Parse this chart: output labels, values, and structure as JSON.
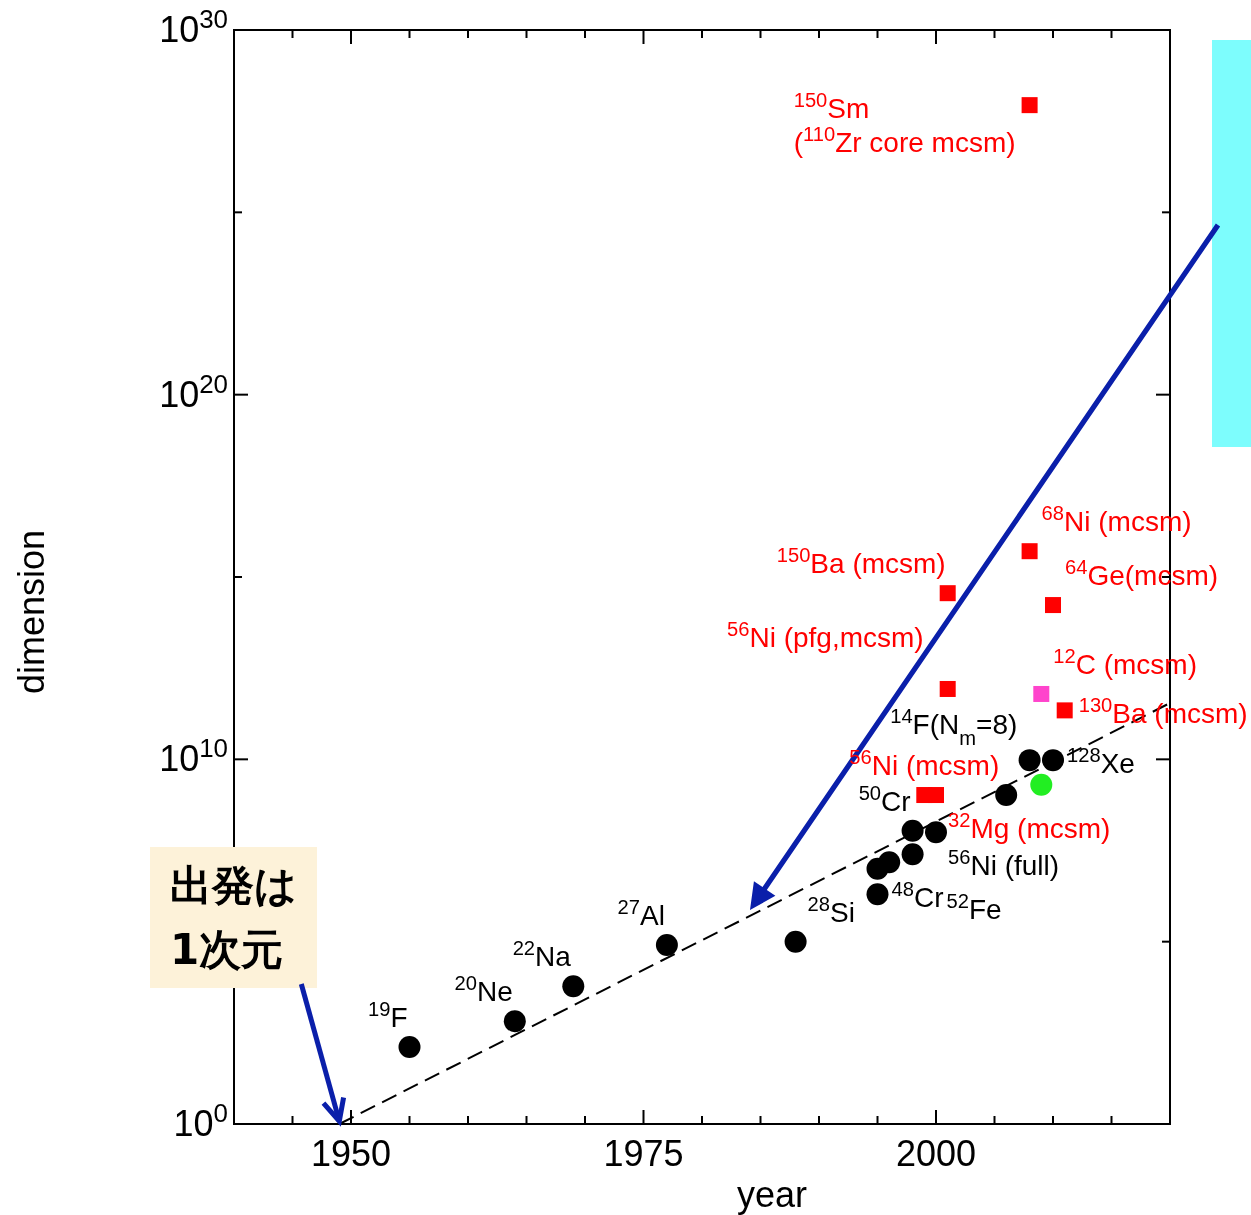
{
  "chart_data": {
    "type": "scatter",
    "xlabel": "year",
    "ylabel": "dimension",
    "log": "y",
    "xlim": [
      1940,
      2020
    ],
    "xticks": [
      {
        "value": 1945,
        "label": null
      },
      1950,
      {
        "value": 1955,
        "label": null
      },
      {
        "value": 1960,
        "label": null
      },
      {
        "value": 1965,
        "label": null
      },
      {
        "value": 1970,
        "label": null
      },
      1975,
      {
        "value": 1980,
        "label": null
      },
      {
        "value": 1985,
        "label": null
      },
      {
        "value": 1990,
        "label": null
      },
      {
        "value": 1995,
        "label": null
      },
      2000,
      {
        "value": 2005,
        "label": null
      },
      {
        "value": 2010,
        "label": null
      },
      {
        "value": 2015,
        "label": null
      }
    ],
    "ylim": [
      1,
      1e+30
    ],
    "yticks": [
      {
        "value": 1,
        "label": "10$^{0}$"
      },
      {
        "value": 100000.0,
        "label": null
      },
      {
        "value": 10000000000.0,
        "label": "10$^{10}$"
      },
      {
        "value": 1000000000000000.0,
        "label": null
      },
      {
        "value": 1e+20,
        "label": "10$^{20}$"
      },
      {
        "value": 1e+25,
        "label": null
      },
      {
        "value": 1e+30,
        "label": "10$^{30}$"
      }
    ],
    "series": [
      {
        "type": "line",
        "color": "#000000",
        "line_style": "dashed",
        "marker": "none",
        "x": [
          1949,
          2020
        ],
        "values": [
          1,
          350000000000.0
        ]
      },
      {
        "color": "#000000",
        "marker": "circle",
        "x": [
          1955,
          1964,
          1969,
          1977,
          1988,
          1995,
          1995,
          1996,
          1998,
          1998,
          2000,
          2006,
          2008,
          2010
        ],
        "values": [
          130,
          660,
          6000,
          81000,
          100000,
          2000000.0,
          10000000.0,
          15000000.0,
          25000000.0,
          110000000.0,
          100000000.0,
          1050000000.0,
          9500000000.0,
          9500000000.0
        ]
      },
      {
        "color": "#ff0000",
        "marker": "square",
        "x": [
          2008,
          2008,
          2001,
          2010,
          2001,
          2011,
          1999,
          2000
        ],
        "values": [
          8.7e+27,
          5100000000000000.0,
          360000000000000.0,
          170000000000000.0,
          850000000000.0,
          220000000000.0,
          1050000000.0,
          1050000000.0
        ]
      },
      {
        "color": "#ff44cc",
        "marker": "square",
        "x": [
          2009
        ],
        "values": [
          620000000000.0
        ]
      },
      {
        "color": "#22ee22",
        "marker": "circle",
        "x": [
          2009
        ],
        "values": [
          2000000000.0
        ]
      }
    ],
    "annotations": [
      {
        "text": "$^{150}$Sm\n($^{110}$Zr core mcsm)",
        "x": 2008,
        "y": 8.7e+27
      },
      {
        "text": "$^{68}$Ni (mcsm)",
        "x": 2008,
        "y": 5100000000000000.0
      },
      {
        "text": "$^{150}$Ba (mcsm)",
        "x": 2001,
        "y": 360000000000000.0
      },
      {
        "text": "$^{64}$Ge(mcsm)",
        "x": 2010,
        "y": 170000000000000.0
      },
      {
        "text": "$^{12}$C (mcsm)",
        "x": 2009,
        "y": 620000000000.0
      },
      {
        "text": "$^{56}$Ni (pfg,mcsm)",
        "x": 2001,
        "y": 850000000000.0
      },
      {
        "text": "$^{130}$Ba (mcsm)",
        "x": 2011,
        "y": 220000000000.0
      },
      {
        "text": "$^{32}$Mg (mcsm)",
        "x": 2000,
        "y": 1050000000.0
      },
      {
        "text": "$^{56}$Ni (mcsm)",
        "x": 1999,
        "y": 1050000000.0
      },
      {
        "text": "$^{128}$Xe",
        "x": 2010,
        "y": 9500000000.0
      },
      {
        "text": "$^{14}$F(N$_{m}$=8)",
        "x": 2009,
        "y": 2000000000.0
      },
      {
        "text": "$^{56}$Ni (full)",
        "x": 2000,
        "y": 100000000.0
      },
      {
        "text": "$^{50}$Cr",
        "x": 1998,
        "y": 110000000.0
      },
      {
        "text": "$^{52}$Fe",
        "x": 1998,
        "y": 25000000.0
      },
      {
        "text": "$^{48}$Cr",
        "x": 1995,
        "y": 2000000.0
      },
      {
        "text": "$^{28}$Si",
        "x": 1988,
        "y": 100000
      },
      {
        "text": "$^{27}$Al",
        "x": 1977,
        "y": 81000
      },
      {
        "text": "$^{22}$Na",
        "x": 1969,
        "y": 6000
      },
      {
        "text": "$^{20}$Ne",
        "x": 1964,
        "y": 660
      },
      {
        "text": "$^{19}$F",
        "x": 1955,
        "y": 130
      },
      {
        "text": "出発は\n1次元",
        "x": 1949,
        "y": 1.2
      }
    ]
  }
}
